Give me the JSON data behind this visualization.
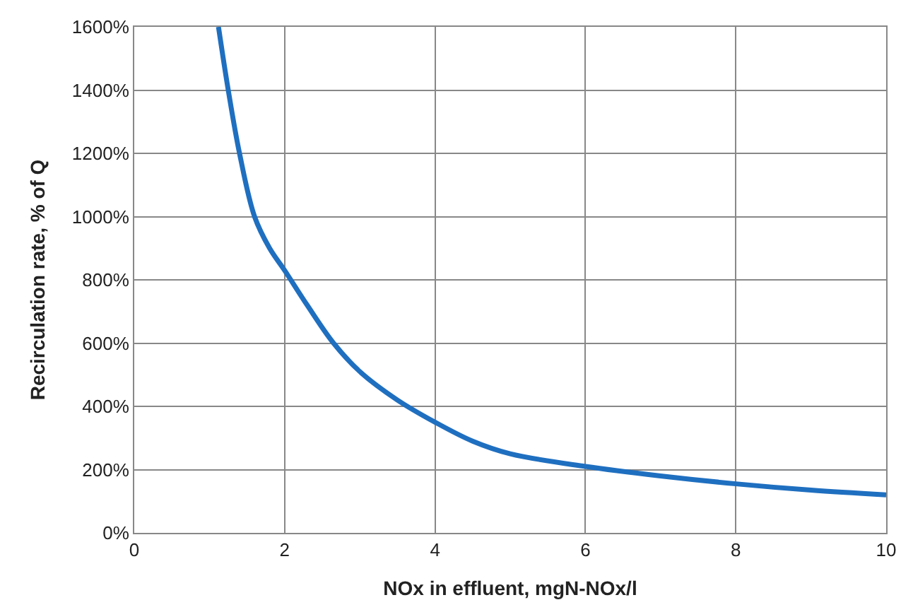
{
  "chart_data": {
    "type": "line",
    "xlabel": "NOx in effluent, mgN-NOx/l",
    "ylabel": "Recirculation rate, % of Q",
    "x": [
      1.12,
      1.25,
      1.4,
      1.6,
      1.8,
      2,
      2.3,
      2.65,
      3,
      3.5,
      4,
      4.5,
      5,
      6,
      7,
      8,
      9,
      10
    ],
    "series": [
      {
        "color": "#1f6fc0",
        "values": [
          1600,
          1400,
          1200,
          1000,
          900,
          830,
          720,
          600,
          510,
          420,
          350,
          290,
          250,
          210,
          180,
          155,
          135,
          120
        ]
      }
    ],
    "xlim": [
      0,
      10
    ],
    "xticks": [
      0,
      2,
      4,
      6,
      8,
      10
    ],
    "ylim": [
      0,
      1600
    ],
    "yticks": [
      {
        "value": 0,
        "label": "0%"
      },
      {
        "value": 200,
        "label": "200%"
      },
      {
        "value": 400,
        "label": "400%"
      },
      {
        "value": 600,
        "label": "600%"
      },
      {
        "value": 800,
        "label": "800%"
      },
      {
        "value": 1000,
        "label": "1000%"
      },
      {
        "value": 1200,
        "label": "1200%"
      },
      {
        "value": 1400,
        "label": "1400%"
      },
      {
        "value": 1600,
        "label": "1600%"
      }
    ],
    "grid": true,
    "legend": false,
    "marker": "none",
    "line_style": "solid"
  }
}
